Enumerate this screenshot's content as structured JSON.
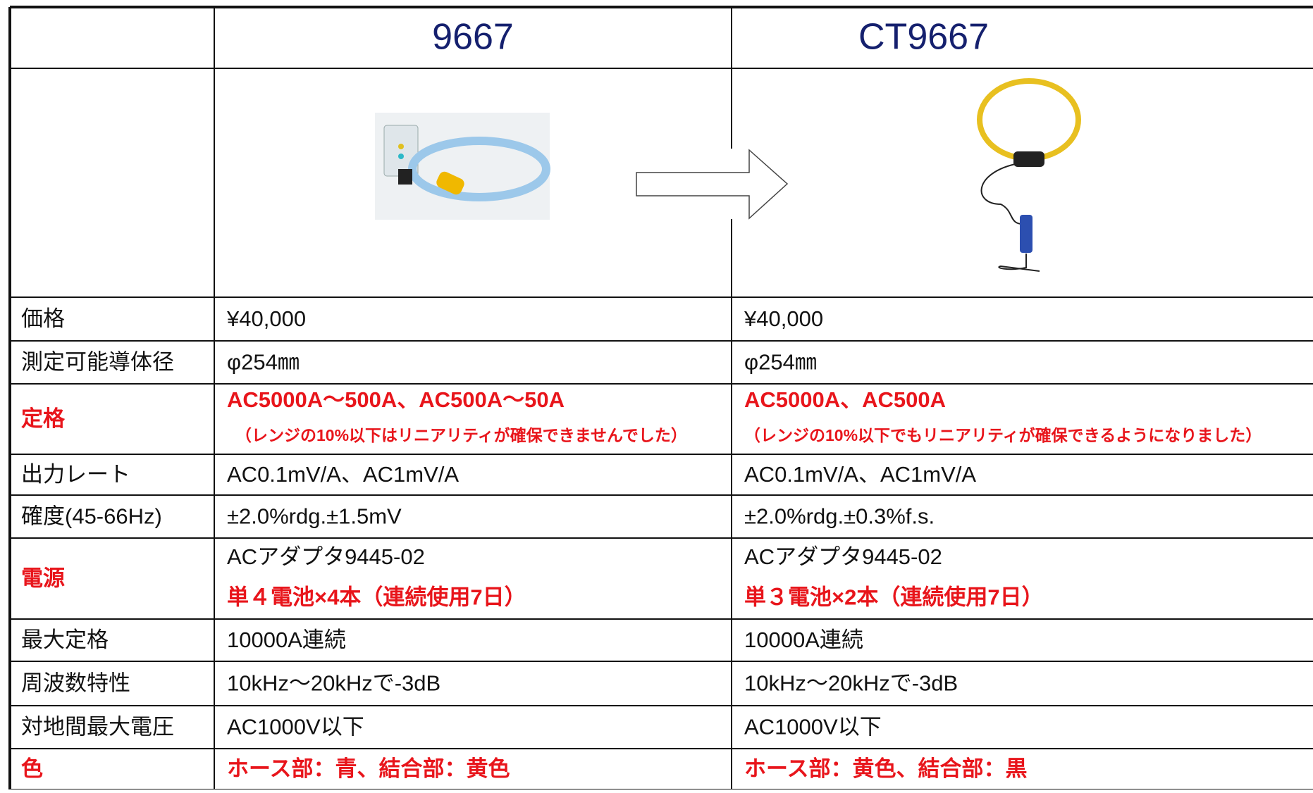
{
  "table": {
    "header": [
      "9667",
      "CT9667"
    ],
    "rows": [
      {
        "label": "価格",
        "cells": [
          [
            {
              "text": "¥40,000"
            }
          ],
          [
            {
              "text": "¥40,000"
            }
          ]
        ]
      },
      {
        "label": "測定可能導体径",
        "cells": [
          [
            {
              "text": "φ254㎜"
            }
          ],
          [
            {
              "text": "φ254㎜"
            }
          ]
        ]
      },
      {
        "label": "定格",
        "red": true,
        "cells": [
          [
            {
              "text": "AC5000A～500A、AC500A～50A",
              "red": true
            },
            {
              "text": "（レンジの10%以下はリニアリティが確保できませんでした）",
              "red": true,
              "small": true
            }
          ],
          [
            {
              "text": "AC5000A、AC500A",
              "red": true
            },
            {
              "text": "（レンジの10%以下でもリニアリティが確保できるようになりました）",
              "red": true,
              "small": true
            }
          ]
        ]
      },
      {
        "label": "出力レート",
        "cells": [
          [
            {
              "text": "AC0.1mV/A、AC1mV/A"
            }
          ],
          [
            {
              "text": "AC0.1mV/A、AC1mV/A"
            }
          ]
        ]
      },
      {
        "label": "確度(45-66Hz)",
        "cells": [
          [
            {
              "text": "±2.0%rdg.±1.5mV"
            }
          ],
          [
            {
              "text": "±2.0%rdg.±0.3%f.s."
            }
          ]
        ]
      },
      {
        "label": "電源",
        "red": true,
        "cells": [
          [
            {
              "text": "ACアダプタ9445-02"
            },
            {
              "text": "単４電池×4本（連続使用7日）",
              "red": true
            }
          ],
          [
            {
              "text": "ACアダプタ9445-02"
            },
            {
              "text": "単３電池×2本（連続使用7日）",
              "red": true
            }
          ]
        ]
      },
      {
        "label": "最大定格",
        "cells": [
          [
            {
              "text": "10000A連続"
            }
          ],
          [
            {
              "text": "10000A連続"
            }
          ]
        ]
      },
      {
        "label": "周波数特性",
        "cells": [
          [
            {
              "text": "10kHz～20kHzで-3dB"
            }
          ],
          [
            {
              "text": "10kHz～20kHzで-3dB"
            }
          ]
        ]
      },
      {
        "label": "対地間最大電圧",
        "cells": [
          [
            {
              "text": "AC1000V以下"
            }
          ],
          [
            {
              "text": "AC1000V以下"
            }
          ]
        ]
      },
      {
        "label": "色",
        "red": true,
        "cells": [
          [
            {
              "text": "ホース部：青、結合部：黄色",
              "red": true
            }
          ],
          [
            {
              "text": "ホース部：黄色、結合部：黒",
              "red": true
            }
          ]
        ]
      }
    ]
  }
}
